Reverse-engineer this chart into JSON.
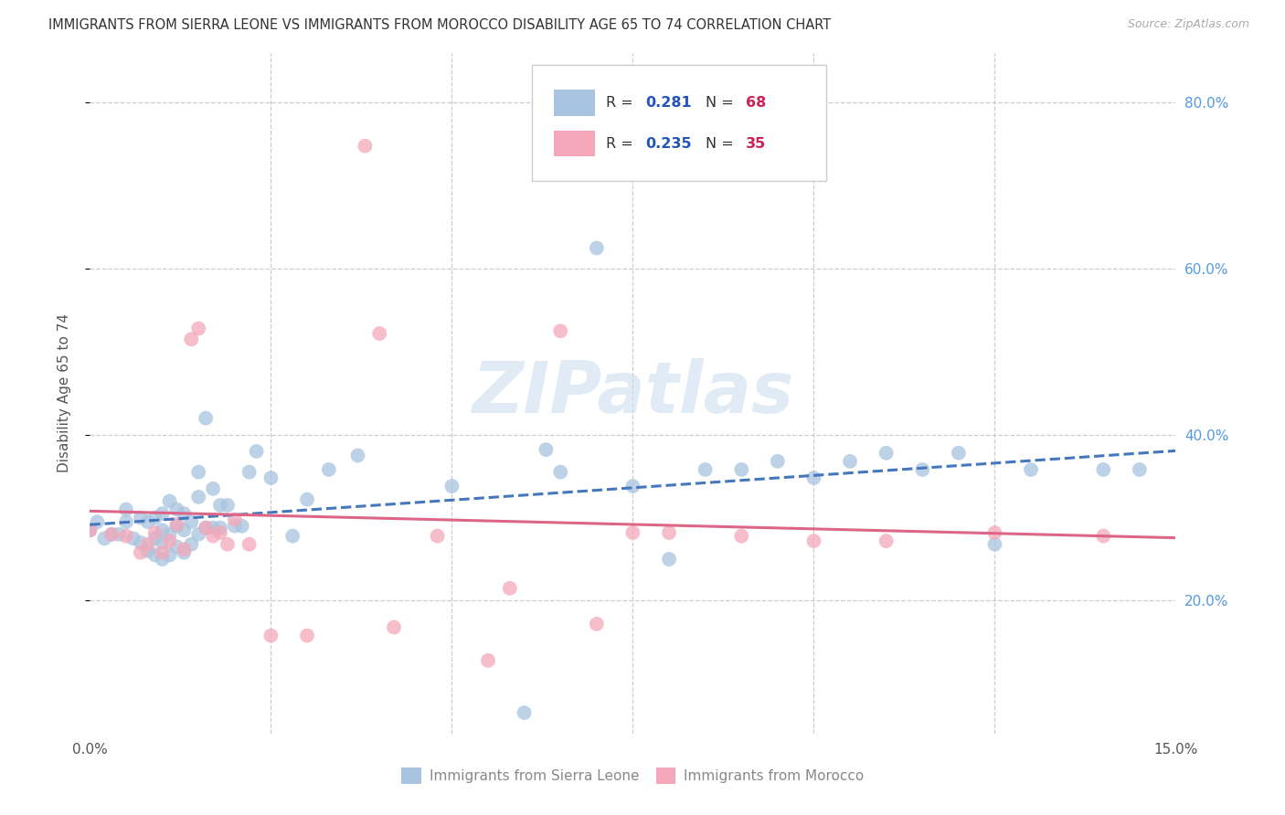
{
  "title": "IMMIGRANTS FROM SIERRA LEONE VS IMMIGRANTS FROM MOROCCO DISABILITY AGE 65 TO 74 CORRELATION CHART",
  "source": "Source: ZipAtlas.com",
  "ylabel": "Disability Age 65 to 74",
  "xmin": 0.0,
  "xmax": 0.15,
  "ymin": 0.04,
  "ymax": 0.86,
  "yticks": [
    0.2,
    0.4,
    0.6,
    0.8
  ],
  "ytick_labels": [
    "20.0%",
    "40.0%",
    "60.0%",
    "80.0%"
  ],
  "xticks": [
    0.0,
    0.025,
    0.05,
    0.075,
    0.1,
    0.125,
    0.15
  ],
  "xtick_labels": [
    "0.0%",
    "",
    "",
    "",
    "",
    "",
    "15.0%"
  ],
  "sierra_leone_color": "#a8c4e0",
  "morocco_color": "#f4a7b9",
  "sierra_leone_R": "0.281",
  "sierra_leone_N": "68",
  "morocco_R": "0.235",
  "morocco_N": "35",
  "legend_R_color": "#2255bb",
  "legend_N_color": "#cc2255",
  "trendline_sierra_color": "#4477bb",
  "trendline_morocco_color": "#dd6688",
  "watermark": "ZIPatlas",
  "sierra_leone_x": [
    0.0,
    0.001,
    0.002,
    0.003,
    0.004,
    0.005,
    0.005,
    0.006,
    0.007,
    0.007,
    0.008,
    0.008,
    0.009,
    0.009,
    0.009,
    0.01,
    0.01,
    0.01,
    0.01,
    0.011,
    0.011,
    0.011,
    0.012,
    0.012,
    0.012,
    0.013,
    0.013,
    0.013,
    0.014,
    0.014,
    0.015,
    0.015,
    0.015,
    0.016,
    0.016,
    0.017,
    0.017,
    0.018,
    0.018,
    0.019,
    0.02,
    0.021,
    0.022,
    0.023,
    0.025,
    0.028,
    0.03,
    0.033,
    0.037,
    0.05,
    0.06,
    0.063,
    0.065,
    0.07,
    0.075,
    0.08,
    0.085,
    0.09,
    0.095,
    0.1,
    0.105,
    0.11,
    0.115,
    0.12,
    0.125,
    0.13,
    0.14,
    0.145
  ],
  "sierra_leone_y": [
    0.285,
    0.295,
    0.275,
    0.28,
    0.28,
    0.295,
    0.31,
    0.275,
    0.27,
    0.3,
    0.26,
    0.295,
    0.255,
    0.275,
    0.3,
    0.25,
    0.27,
    0.285,
    0.305,
    0.255,
    0.28,
    0.32,
    0.265,
    0.29,
    0.31,
    0.258,
    0.285,
    0.305,
    0.268,
    0.295,
    0.28,
    0.325,
    0.355,
    0.288,
    0.42,
    0.288,
    0.335,
    0.288,
    0.315,
    0.315,
    0.29,
    0.29,
    0.355,
    0.38,
    0.348,
    0.278,
    0.322,
    0.358,
    0.375,
    0.338,
    0.065,
    0.382,
    0.355,
    0.625,
    0.338,
    0.25,
    0.358,
    0.358,
    0.368,
    0.348,
    0.368,
    0.378,
    0.358,
    0.378,
    0.268,
    0.358,
    0.358,
    0.358
  ],
  "morocco_x": [
    0.0,
    0.003,
    0.005,
    0.007,
    0.008,
    0.009,
    0.01,
    0.011,
    0.012,
    0.013,
    0.014,
    0.015,
    0.016,
    0.017,
    0.018,
    0.019,
    0.02,
    0.022,
    0.025,
    0.03,
    0.038,
    0.04,
    0.042,
    0.048,
    0.055,
    0.058,
    0.065,
    0.07,
    0.075,
    0.08,
    0.09,
    0.1,
    0.11,
    0.125,
    0.14
  ],
  "morocco_y": [
    0.285,
    0.28,
    0.278,
    0.258,
    0.268,
    0.282,
    0.258,
    0.272,
    0.292,
    0.262,
    0.515,
    0.528,
    0.288,
    0.278,
    0.282,
    0.268,
    0.298,
    0.268,
    0.158,
    0.158,
    0.748,
    0.522,
    0.168,
    0.278,
    0.128,
    0.215,
    0.525,
    0.172,
    0.282,
    0.282,
    0.278,
    0.272,
    0.272,
    0.282,
    0.278
  ]
}
